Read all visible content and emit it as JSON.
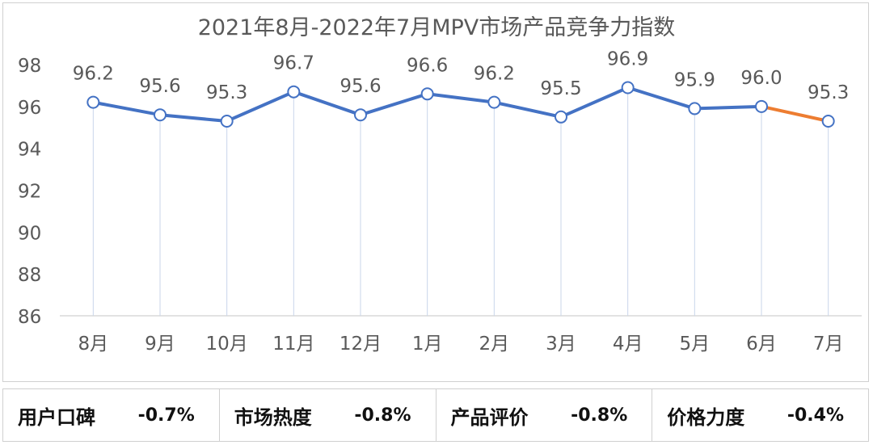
{
  "chart_data": {
    "type": "line",
    "title": "2021年8月-2022年7月MPV市场产品竞争力指数",
    "categories": [
      "8月",
      "9月",
      "10月",
      "11月",
      "12月",
      "1月",
      "2月",
      "3月",
      "4月",
      "5月",
      "6月",
      "7月"
    ],
    "values": [
      96.2,
      95.6,
      95.3,
      96.7,
      95.6,
      96.6,
      96.2,
      95.5,
      96.9,
      95.9,
      96.0,
      95.3
    ],
    "data_labels": [
      "96.2",
      "95.6",
      "95.3",
      "96.7",
      "95.6",
      "96.6",
      "96.2",
      "95.5",
      "96.9",
      "95.9",
      "96.0",
      "95.3"
    ],
    "ylim": [
      86,
      98
    ],
    "yticks": [
      "86",
      "88",
      "90",
      "92",
      "94",
      "96",
      "98"
    ],
    "xlabel": "",
    "ylabel": "",
    "series_color": "#4472c4",
    "highlight_color": "#ed7d31",
    "highlight_last_segment": true
  },
  "metrics": [
    {
      "label": "用户口碑",
      "value": "-0.7%"
    },
    {
      "label": "市场热度",
      "value": "-0.8%"
    },
    {
      "label": "产品评价",
      "value": "-0.8%"
    },
    {
      "label": "价格力度",
      "value": "-0.4%"
    }
  ]
}
